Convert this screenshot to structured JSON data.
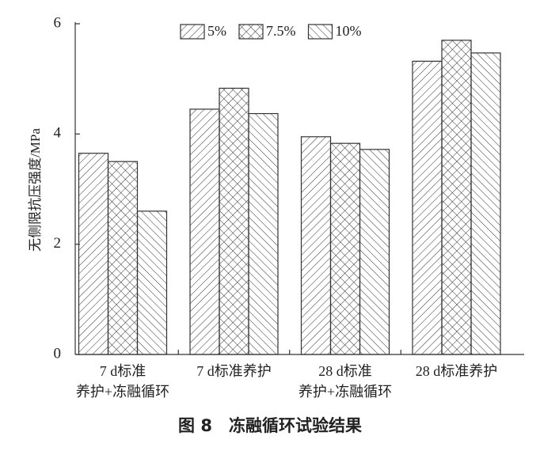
{
  "chart_data": {
    "type": "bar",
    "caption": "图 8　冻融循环试验结果",
    "ylabel": "无侧限抗压强度/MPa",
    "categories": [
      "7 d标准\n养护+冻融循环",
      "7 d标准养护",
      "28 d标准\n养护+冻融循环",
      "28 d标准养护"
    ],
    "series": [
      {
        "name": "5%",
        "color": "#333333",
        "hatch": "/",
        "values": [
          3.65,
          4.45,
          3.95,
          5.32
        ]
      },
      {
        "name": "7.5%",
        "color": "#333333",
        "hatch": "x",
        "values": [
          3.5,
          4.83,
          3.83,
          5.7
        ]
      },
      {
        "name": "10%",
        "color": "#333333",
        "hatch": "\\",
        "values": [
          2.6,
          4.37,
          3.72,
          5.47
        ]
      }
    ],
    "ylim": [
      0,
      6
    ],
    "yticks": [
      0,
      2,
      4,
      6
    ],
    "legend": "top"
  }
}
